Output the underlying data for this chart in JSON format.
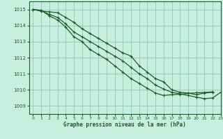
{
  "bg_color": "#c8eee0",
  "grid_color": "#99ccbb",
  "line_color": "#1a5c2a",
  "title": "Graphe pression niveau de la mer (hPa)",
  "xlim": [
    -0.5,
    23
  ],
  "ylim": [
    1008.5,
    1015.5
  ],
  "xticks": [
    0,
    1,
    2,
    3,
    4,
    5,
    6,
    7,
    8,
    9,
    10,
    11,
    12,
    13,
    14,
    15,
    16,
    17,
    18,
    19,
    20,
    21,
    22,
    23
  ],
  "yticks": [
    1009,
    1010,
    1011,
    1012,
    1013,
    1014,
    1015
  ],
  "series": [
    {
      "x": [
        0,
        1,
        2,
        3,
        4,
        5,
        6,
        7,
        8,
        9,
        10,
        11,
        12,
        13,
        14,
        15,
        16,
        17,
        18,
        19,
        20,
        21,
        22
      ],
      "y": [
        1015.0,
        1014.9,
        1014.85,
        1014.8,
        1014.5,
        1014.2,
        1013.8,
        1013.5,
        1013.2,
        1012.9,
        1012.6,
        1012.3,
        1012.1,
        1011.5,
        1011.1,
        1010.7,
        1010.5,
        1010.0,
        1009.85,
        1009.8,
        1009.7,
        1009.8,
        1009.85
      ]
    },
    {
      "x": [
        0,
        1,
        2,
        3,
        4,
        5,
        6,
        7,
        8,
        9,
        10,
        11,
        12,
        13,
        14,
        15,
        16,
        17,
        18,
        19,
        20,
        21,
        22,
        23
      ],
      "y": [
        1015.0,
        1014.9,
        1014.7,
        1014.5,
        1014.1,
        1013.6,
        1013.3,
        1013.0,
        1012.7,
        1012.4,
        1012.1,
        1011.8,
        1011.4,
        1011.0,
        1010.7,
        1010.3,
        1010.05,
        1009.85,
        1009.75,
        1009.65,
        1009.55,
        1009.45,
        1009.5,
        1009.85
      ]
    },
    {
      "x": [
        0,
        1,
        2,
        3,
        4,
        5,
        6,
        7,
        8,
        9,
        10,
        11,
        12,
        13,
        14,
        15,
        16,
        17,
        18,
        19,
        20,
        21,
        22
      ],
      "y": [
        1015.0,
        1014.95,
        1014.6,
        1014.35,
        1013.9,
        1013.3,
        1013.0,
        1012.5,
        1012.2,
        1011.9,
        1011.5,
        1011.1,
        1010.7,
        1010.4,
        1010.1,
        1009.8,
        1009.65,
        1009.7,
        1009.72,
        1009.78,
        1009.82,
        1009.84,
        1009.88
      ]
    }
  ]
}
